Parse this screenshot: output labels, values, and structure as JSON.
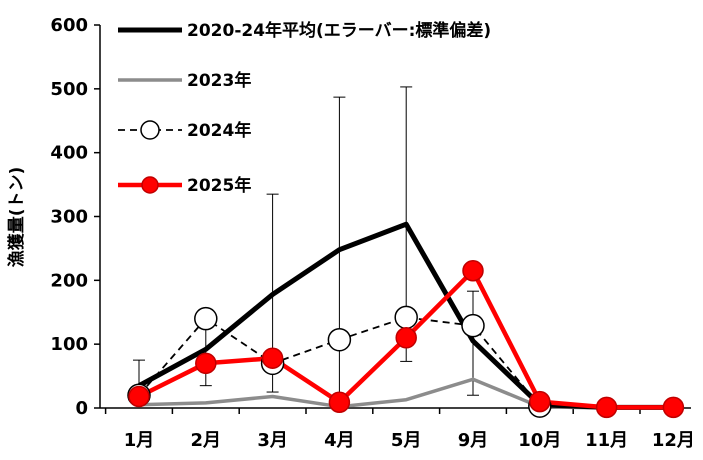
{
  "chart_data": {
    "type": "line",
    "title": "",
    "xlabel": "",
    "ylabel": "漁獲量(トン)",
    "ylim": [
      0,
      600
    ],
    "yticks": [
      "0",
      "100",
      "200",
      "300",
      "400",
      "500",
      "600"
    ],
    "categories": [
      "1月",
      "2月",
      "3月",
      "4月",
      "5月",
      "9月",
      "10月",
      "11月",
      "12月"
    ],
    "grid": false,
    "legend_position": "top-left",
    "series": [
      {
        "name": "2020-24年平均(エラーバー:標準偏差)",
        "color": "#000000",
        "marker": "none",
        "line_style": "solid",
        "values": [
          35,
          92,
          178,
          248,
          288,
          105,
          5,
          1,
          1
        ],
        "error_upper": [
          75,
          135,
          335,
          487,
          503,
          183,
          12,
          null,
          null
        ],
        "error_lower": [
          5,
          35,
          25,
          10,
          73,
          20,
          0,
          null,
          null
        ]
      },
      {
        "name": "2023年",
        "color": "#8c8c8c",
        "marker": "none",
        "line_style": "solid",
        "values": [
          5,
          8,
          18,
          2,
          13,
          45,
          2,
          0,
          0
        ]
      },
      {
        "name": "2024年",
        "color": "#000000",
        "marker": "open-circle",
        "line_style": "dashed",
        "values": [
          20,
          140,
          70,
          107,
          142,
          129,
          3,
          null,
          null
        ]
      },
      {
        "name": "2025年",
        "color": "#ff0000",
        "marker": "filled-circle",
        "line_style": "solid",
        "values": [
          18,
          70,
          78,
          9,
          110,
          215,
          10,
          1,
          1
        ]
      }
    ]
  }
}
